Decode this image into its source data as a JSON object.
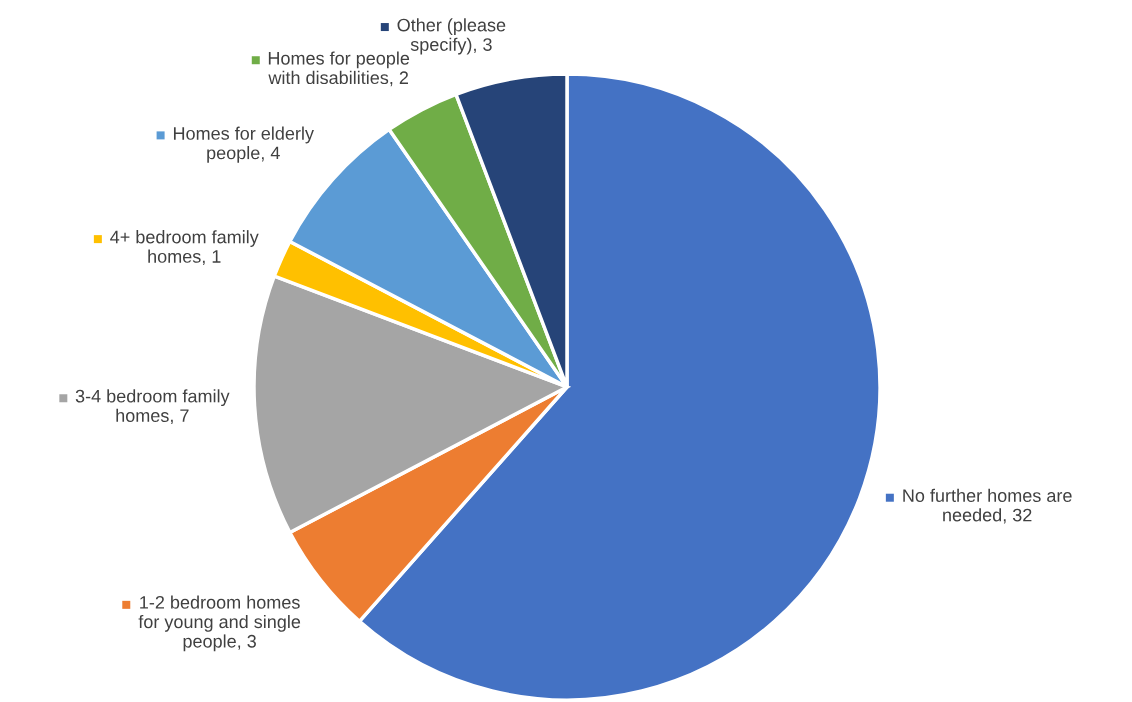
{
  "chart_data": {
    "type": "pie",
    "categories": [
      "No further homes are needed, 32",
      "1-2 bedroom homes for young and single people, 3",
      "3-4 bedroom family homes, 7",
      "4+ bedroom family homes, 1",
      "Homes for elderly people, 4",
      "Homes for people with disabilities, 2",
      "Other (please specify), 3"
    ],
    "values": [
      32,
      3,
      7,
      1,
      4,
      2,
      3
    ],
    "colors": [
      "#4472c4",
      "#ed7d31",
      "#a5a5a5",
      "#ffc000",
      "#5b9bd5",
      "#70ad47",
      "#264478"
    ],
    "legend": "left"
  }
}
